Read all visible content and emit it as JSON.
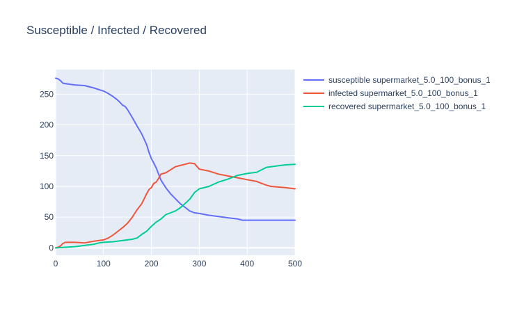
{
  "chart_data": {
    "type": "line",
    "title": "Susceptible / Infected / Recovered",
    "xlabel": "",
    "ylabel": "",
    "xlim": [
      0,
      500
    ],
    "ylim": [
      -12,
      290
    ],
    "xticks": [
      0,
      100,
      200,
      300,
      400,
      500
    ],
    "yticks": [
      0,
      50,
      100,
      150,
      200,
      250
    ],
    "grid": true,
    "legend_position": "right",
    "series": [
      {
        "name": "susceptible supermarket_5.0_100_bonus_1",
        "color": "#636efa",
        "x": [
          0,
          5,
          10,
          15,
          20,
          40,
          60,
          80,
          100,
          110,
          120,
          130,
          140,
          145,
          150,
          160,
          170,
          180,
          190,
          195,
          200,
          205,
          210,
          215,
          220,
          225,
          230,
          240,
          250,
          260,
          270,
          280,
          290,
          300,
          320,
          340,
          360,
          380,
          390,
          400,
          450,
          500
        ],
        "y": [
          276,
          275,
          272,
          268,
          267,
          265,
          264,
          260,
          255,
          251,
          246,
          240,
          232,
          230,
          225,
          212,
          198,
          185,
          168,
          155,
          145,
          138,
          130,
          120,
          110,
          104,
          98,
          88,
          80,
          72,
          66,
          60,
          57,
          56,
          53,
          51,
          49,
          47,
          45,
          45,
          45,
          45
        ]
      },
      {
        "name": "infected supermarket_5.0_100_bonus_1",
        "color": "#ef553b",
        "x": [
          0,
          5,
          10,
          15,
          20,
          40,
          60,
          80,
          100,
          110,
          120,
          130,
          140,
          150,
          160,
          170,
          180,
          190,
          195,
          200,
          205,
          210,
          215,
          220,
          225,
          230,
          240,
          250,
          260,
          270,
          280,
          290,
          300,
          320,
          340,
          360,
          380,
          400,
          420,
          440,
          450,
          480,
          500
        ],
        "y": [
          0,
          1,
          3,
          7,
          9,
          9,
          8,
          11,
          13,
          16,
          21,
          27,
          33,
          40,
          50,
          62,
          72,
          88,
          95,
          98,
          105,
          107,
          113,
          120,
          121,
          122,
          127,
          132,
          134,
          136,
          138,
          137,
          128,
          125,
          120,
          117,
          114,
          111,
          108,
          102,
          100,
          98,
          96
        ]
      },
      {
        "name": "recovered supermarket_5.0_100_bonus_1",
        "color": "#00cc96",
        "x": [
          0,
          20,
          40,
          60,
          80,
          90,
          100,
          120,
          140,
          160,
          170,
          180,
          190,
          200,
          210,
          220,
          230,
          240,
          250,
          260,
          270,
          280,
          290,
          300,
          320,
          340,
          360,
          380,
          400,
          420,
          440,
          460,
          480,
          500
        ],
        "y": [
          0,
          1,
          2,
          4,
          6,
          8,
          9,
          10,
          12,
          14,
          16,
          22,
          27,
          35,
          42,
          47,
          54,
          57,
          60,
          65,
          72,
          79,
          90,
          96,
          100,
          107,
          112,
          118,
          121,
          123,
          131,
          133,
          135,
          136
        ]
      }
    ]
  }
}
